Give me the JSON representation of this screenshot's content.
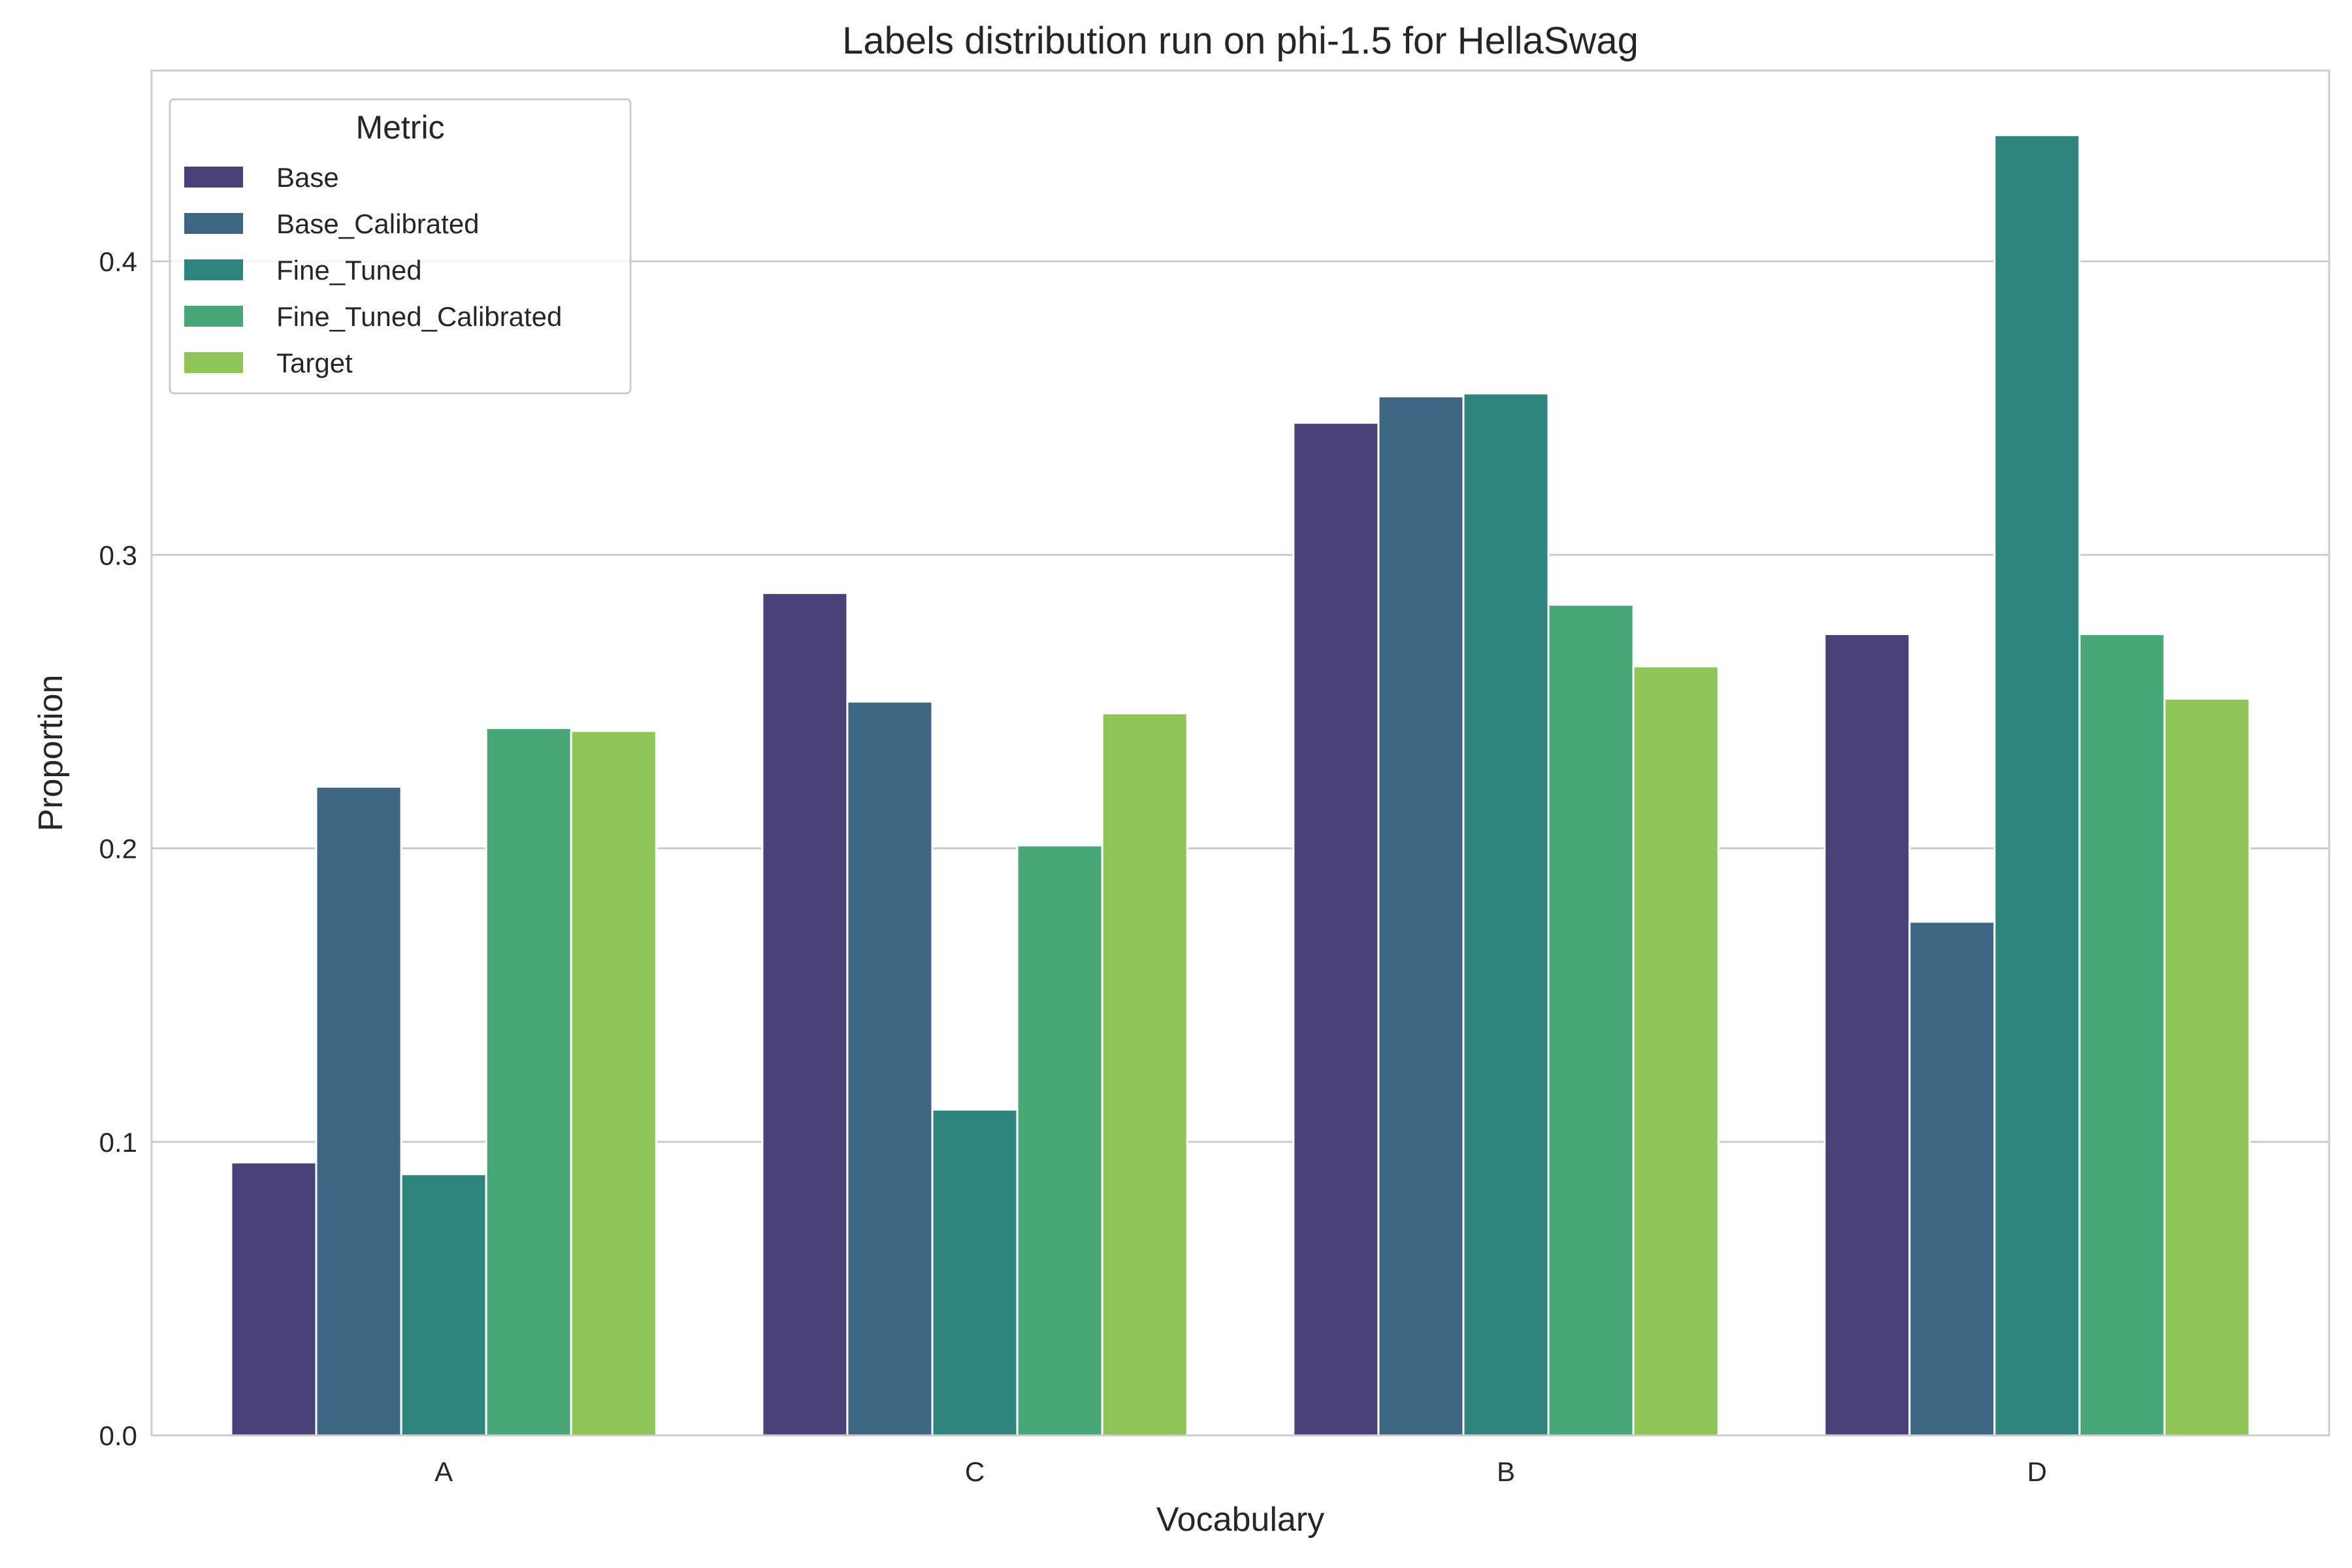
{
  "chart_data": {
    "type": "bar",
    "title": "Labels distribution run on phi-1.5 for HellaSwag",
    "xlabel": "Vocabulary",
    "ylabel": "Proportion",
    "categories": [
      "A",
      "C",
      "B",
      "D"
    ],
    "ylim": [
      0,
      0.465
    ],
    "yticks": [
      0.0,
      0.1,
      0.2,
      0.3,
      0.4
    ],
    "ytick_labels": [
      "0.0",
      "0.1",
      "0.2",
      "0.3",
      "0.4"
    ],
    "grid": "horizontal",
    "legend": {
      "title": "Metric",
      "placement": "upper-left"
    },
    "series": [
      {
        "name": "Base",
        "color": "#4a4178",
        "values": [
          0.093,
          0.287,
          0.345,
          0.273
        ]
      },
      {
        "name": "Base_Calibrated",
        "color": "#3e6582",
        "values": [
          0.221,
          0.25,
          0.354,
          0.175
        ]
      },
      {
        "name": "Fine_Tuned",
        "color": "#2f847e",
        "values": [
          0.089,
          0.111,
          0.355,
          0.443
        ]
      },
      {
        "name": "Fine_Tuned_Calibrated",
        "color": "#47a776",
        "values": [
          0.241,
          0.201,
          0.283,
          0.273
        ]
      },
      {
        "name": "Target",
        "color": "#8fc457",
        "values": [
          0.24,
          0.246,
          0.262,
          0.251
        ]
      }
    ]
  }
}
